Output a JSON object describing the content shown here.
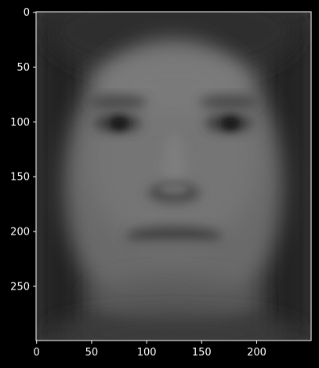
{
  "chart_data": {
    "type": "heatmap",
    "colormap": "gray",
    "background": "#000000",
    "foreground": "#ffffff",
    "x_ticks": [
      {
        "value": 0,
        "label": "0"
      },
      {
        "value": 50,
        "label": "50"
      },
      {
        "value": 100,
        "label": "100"
      },
      {
        "value": 150,
        "label": "150"
      },
      {
        "value": 200,
        "label": "200"
      }
    ],
    "y_ticks": [
      {
        "value": 0,
        "label": "0"
      },
      {
        "value": 50,
        "label": "50"
      },
      {
        "value": 100,
        "label": "100"
      },
      {
        "value": 150,
        "label": "150"
      },
      {
        "value": 200,
        "label": "200"
      },
      {
        "value": 250,
        "label": "250"
      }
    ],
    "xlim": [
      -0.5,
      249.5
    ],
    "ylim": [
      299.5,
      -0.5
    ],
    "grid": false,
    "image_description_features": {
      "face_outline": "oval",
      "eyes": 2,
      "nose": 1,
      "mouth": 1
    }
  }
}
